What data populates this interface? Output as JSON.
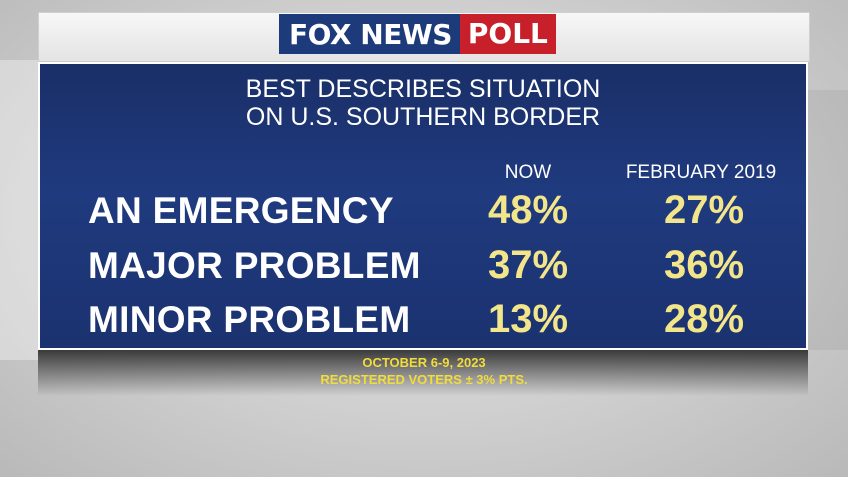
{
  "logo": {
    "fox": "FOX NEWS",
    "poll": "POLL"
  },
  "chart_data": {
    "type": "table",
    "title": "BEST DESCRIBES SITUATION",
    "subtitle": "ON U.S. SOUTHERN BORDER",
    "columns": [
      "NOW",
      "FEBRUARY 2019"
    ],
    "rows": [
      {
        "label": "AN EMERGENCY",
        "values": [
          "48%",
          "27%"
        ]
      },
      {
        "label": "MAJOR PROBLEM",
        "values": [
          "37%",
          "36%"
        ]
      },
      {
        "label": "MINOR PROBLEM",
        "values": [
          "13%",
          "28%"
        ]
      }
    ]
  },
  "footer": {
    "dates": "OCTOBER 6-9, 2023",
    "sample": "REGISTERED VOTERS ± 3% PTS."
  }
}
